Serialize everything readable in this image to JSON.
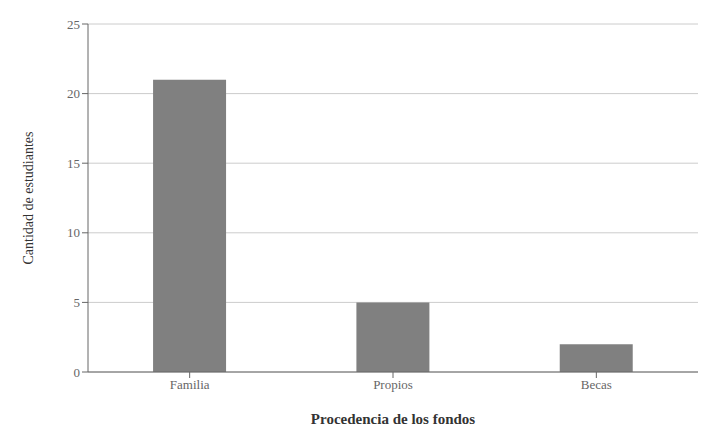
{
  "chart_data": {
    "type": "bar",
    "categories": [
      "Familia",
      "Propios",
      "Becas"
    ],
    "values": [
      21,
      5,
      2
    ],
    "color": "#808080",
    "xlabel": "Procedencia de los fondos",
    "ylabel": "Cantidad de estudiantes",
    "ylim": [
      0,
      25
    ],
    "yticks": [
      0,
      5,
      10,
      15,
      20,
      25
    ],
    "grid": true
  }
}
